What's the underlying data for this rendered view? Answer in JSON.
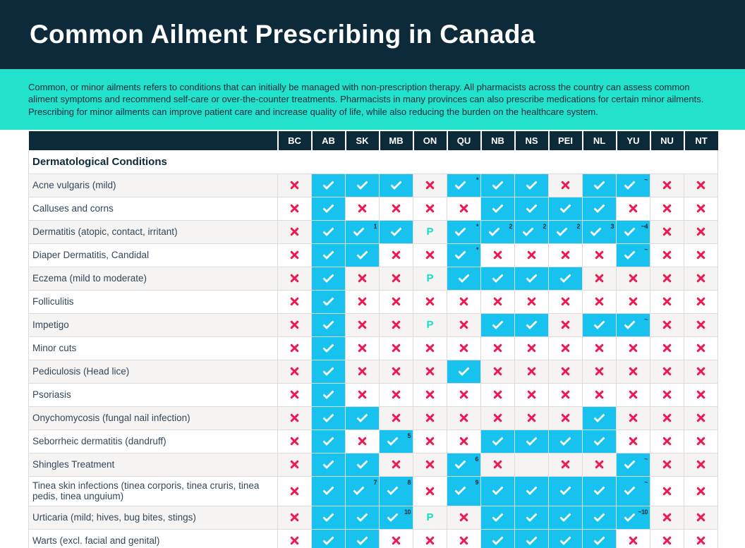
{
  "header": {
    "title": "Common Ailment Prescribing in Canada"
  },
  "intro": {
    "text": "Common, or minor ailments refers to conditions that can initially be managed with non-prescription therapy. All pharmacists across the country can assess common aliment symptoms and recommend self-care or over-the-counter treatments. Pharmacists in many provinces can also prescribe medications for certain minor ailments. Prescribing for minor ailments can improve patient care and increase quality of life, while also reducing the burden on the healthcare system."
  },
  "table": {
    "section_title": "Dermatological Conditions",
    "columns": [
      "BC",
      "AB",
      "SK",
      "MB",
      "ON",
      "QU",
      "NB",
      "NS",
      "PEI",
      "NL",
      "YU",
      "NU",
      "NT"
    ],
    "symbols": {
      "check": "✓",
      "cross": "✕",
      "p": "P",
      "empty": ""
    },
    "rows": [
      {
        "label": "Acne vulgaris (mild)",
        "cells": [
          "x",
          "c",
          "c",
          "c",
          "x",
          "c:*",
          "c",
          "c",
          "x",
          "c",
          "c:~",
          "x",
          "x"
        ]
      },
      {
        "label": "Calluses and corns",
        "cells": [
          "x",
          "c",
          "x",
          "x",
          "x",
          "x",
          "c",
          "c",
          "c",
          "c",
          "x",
          "x",
          "x"
        ]
      },
      {
        "label": "Dermatitis (atopic, contact, irritant)",
        "cells": [
          "x",
          "c",
          "c:1",
          "c",
          "p",
          "c:*",
          "c:2",
          "c:2",
          "c:2",
          "c:3",
          "c:~4",
          "x",
          "x"
        ]
      },
      {
        "label": "Diaper Dermatitis, Candidal",
        "cells": [
          "x",
          "c",
          "c",
          "x",
          "x",
          "c:*",
          "x",
          "x",
          "x",
          "x",
          "c:~",
          "x",
          "x"
        ]
      },
      {
        "label": "Eczema (mild to moderate)",
        "cells": [
          "x",
          "c",
          "x",
          "x",
          "p",
          "c",
          "c",
          "c",
          "c",
          "x",
          "x",
          "x",
          "x"
        ]
      },
      {
        "label": "Folliculitis",
        "cells": [
          "x",
          "c",
          "x",
          "x",
          "x",
          "x",
          "x",
          "x",
          "x",
          "x",
          "x",
          "x",
          "x"
        ]
      },
      {
        "label": "Impetigo",
        "cells": [
          "x",
          "c",
          "x",
          "x",
          "p",
          "x",
          "c",
          "c",
          "x",
          "c",
          "c:~",
          "x",
          "x"
        ]
      },
      {
        "label": "Minor cuts",
        "cells": [
          "x",
          "c",
          "x",
          "x",
          "x",
          "x",
          "x",
          "x",
          "x",
          "x",
          "x",
          "x",
          "x"
        ]
      },
      {
        "label": "Pediculosis (Head lice)",
        "cells": [
          "x",
          "c",
          "x",
          "x",
          "x",
          "c",
          "x",
          "x",
          "x",
          "x",
          "x",
          "x",
          "x"
        ]
      },
      {
        "label": "Psoriasis",
        "cells": [
          "x",
          "c",
          "x",
          "x",
          "x",
          "x",
          "x",
          "x",
          "x",
          "x",
          "x",
          "x",
          "x"
        ]
      },
      {
        "label": "Onychomycosis (fungal nail infection)",
        "cells": [
          "x",
          "c",
          "c",
          "x",
          "x",
          "x",
          "x",
          "x",
          "x",
          "c",
          "x",
          "x",
          "x"
        ]
      },
      {
        "label": "Seborrheic dermatitis (dandruff)",
        "cells": [
          "x",
          "c",
          "x",
          "c:5",
          "x",
          "x",
          "c",
          "c",
          "c",
          "c",
          "x",
          "x",
          "x"
        ]
      },
      {
        "label": "Shingles Treatment",
        "cells": [
          "x",
          "c",
          "c",
          "x",
          "x",
          "c:6",
          "x",
          "",
          "x",
          "x",
          "c:~",
          "x",
          "x"
        ]
      },
      {
        "label": "Tinea skin infections (tinea corporis, tinea cruris, tinea pedis, tinea unguium)",
        "tall": true,
        "cells": [
          "x",
          "c",
          "c:7",
          "c:8",
          "x",
          "c:9",
          "c",
          "c",
          "c",
          "c",
          "c:~",
          "x",
          "x"
        ]
      },
      {
        "label": "Urticaria (mild; hives, bug bites, stings)",
        "cells": [
          "x",
          "c",
          "c",
          "c:10",
          "p",
          "x",
          "c",
          "c",
          "c",
          "c",
          "c:~10",
          "x",
          "x"
        ]
      },
      {
        "label": "Warts (excl. facial and genital)",
        "cells": [
          "x",
          "c",
          "c",
          "x",
          "x",
          "x",
          "c",
          "c",
          "c",
          "c",
          "x",
          "x",
          "x"
        ]
      }
    ]
  },
  "colors": {
    "header_bg": "#0c2a3a",
    "intro_band_bg": "#23e2cb",
    "check_cell_bg": "#17c3ee",
    "cross_glyph": "#ef1852",
    "p_glyph": "#12dfc4",
    "alt_row_bg": "#f5f4f2",
    "label_text": "#33475b"
  }
}
